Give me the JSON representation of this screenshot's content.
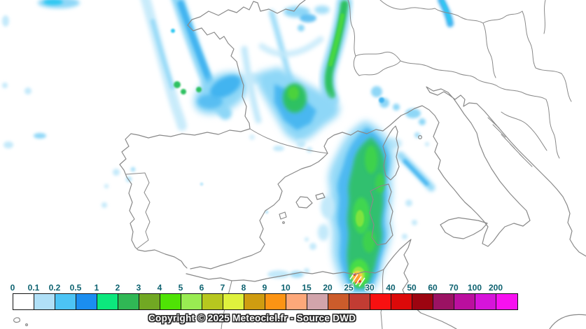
{
  "map": {
    "copyright": "Copyright © 2025 Meteociel.fr - Source DWD"
  },
  "legend": {
    "values": [
      "0",
      "0.1",
      "0.2",
      "0.5",
      "1",
      "2",
      "3",
      "4",
      "5",
      "6",
      "7",
      "8",
      "9",
      "10",
      "15",
      "20",
      "25",
      "30",
      "40",
      "50",
      "60",
      "70",
      "100",
      "200"
    ],
    "colors": [
      "#ffffff",
      "#b0e0f7",
      "#4cc4f5",
      "#1b8ef0",
      "#0ce87d",
      "#30b855",
      "#71a823",
      "#4fe305",
      "#99ec52",
      "#b7c71f",
      "#dff23d",
      "#cf9c10",
      "#fc9414",
      "#fda87a",
      "#d2a4ab",
      "#cc5c2b",
      "#c23c33",
      "#f81010",
      "#dc0909",
      "#9c0410",
      "#9b1263",
      "#bb0f9f",
      "#d614da",
      "#f711f0"
    ],
    "label_color": "#0d6270",
    "box_border_color": "#141414"
  },
  "palette": {
    "coastline": "#898989",
    "precip_pale_blue": "#c3e9fa",
    "precip_light_blue": "#8ed7f7",
    "precip_mid_blue": "#42b4f0",
    "precip_green": "#2fc162",
    "precip_bright_green": "#46dd46",
    "precip_yellow_green": "#9ae741",
    "precip_orange_core": "#ff9d2e",
    "precip_red_spots": "#e03030"
  }
}
